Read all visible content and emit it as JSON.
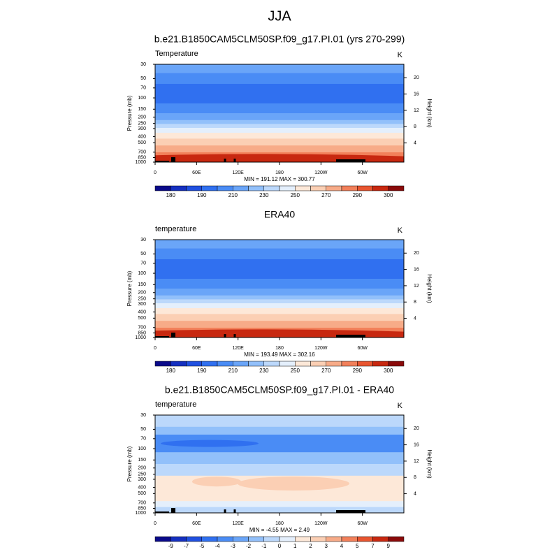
{
  "title": "JJA",
  "chart_data": [
    {
      "type": "contour",
      "title": "b.e21.B1850CAM5CLM50SP.f09_g17.PI.01 (yrs 270-299)",
      "left_label": "Temperature",
      "units": "K",
      "ylabel": "Pressure (mb)",
      "y2label": "Height (km)",
      "log_y": true,
      "ylim": [
        30,
        1000
      ],
      "yticks": [
        30,
        50,
        70,
        100,
        150,
        200,
        250,
        300,
        400,
        500,
        700,
        850,
        1000
      ],
      "y2lim": [
        -0.7,
        23.3
      ],
      "y2ticks": [
        4,
        8,
        12,
        16,
        20
      ],
      "xlim": [
        0,
        360
      ],
      "xticks": [
        0,
        {
          "value": 60,
          "label": "60E"
        },
        {
          "value": 120,
          "label": "120E"
        },
        180,
        {
          "value": 240,
          "label": "120W"
        },
        {
          "value": 300,
          "label": "60W"
        }
      ],
      "stats": "MIN = 191.12  MAX = 300.77",
      "colorbar": {
        "colors": [
          "#0a0a8a",
          "#1530c0",
          "#2050e0",
          "#3070f0",
          "#4a8cf5",
          "#6aa5f8",
          "#92c0fa",
          "#bcd8fb",
          "#e4effc",
          "#fde8d8",
          "#fbcfb4",
          "#f7ab88",
          "#f2805a",
          "#e85530",
          "#c82810",
          "#8a0a0a"
        ],
        "labels": [
          180,
          190,
          210,
          230,
          250,
          270,
          290,
          300
        ]
      }
    },
    {
      "type": "contour",
      "title": "ERA40",
      "left_label": "temperature",
      "units": "K",
      "ylabel": "Pressure (mb)",
      "y2label": "Height (km)",
      "log_y": true,
      "ylim": [
        30,
        1000
      ],
      "yticks": [
        30,
        50,
        70,
        100,
        150,
        200,
        250,
        300,
        400,
        500,
        700,
        850,
        1000
      ],
      "y2lim": [
        -0.7,
        23.3
      ],
      "y2ticks": [
        4,
        8,
        12,
        16,
        20
      ],
      "xlim": [
        0,
        360
      ],
      "xticks": [
        0,
        {
          "value": 60,
          "label": "60E"
        },
        {
          "value": 120,
          "label": "120E"
        },
        180,
        {
          "value": 240,
          "label": "120W"
        },
        {
          "value": 300,
          "label": "60W"
        }
      ],
      "stats": "MIN = 193.49  MAX = 302.16",
      "colorbar": {
        "colors": [
          "#0a0a8a",
          "#1530c0",
          "#2050e0",
          "#3070f0",
          "#4a8cf5",
          "#6aa5f8",
          "#92c0fa",
          "#bcd8fb",
          "#e4effc",
          "#fde8d8",
          "#fbcfb4",
          "#f7ab88",
          "#f2805a",
          "#e85530",
          "#c82810",
          "#8a0a0a"
        ],
        "labels": [
          180,
          190,
          210,
          230,
          250,
          270,
          290,
          300
        ]
      }
    },
    {
      "type": "contour",
      "title": "b.e21.B1850CAM5CLM50SP.f09_g17.PI.01 - ERA40",
      "left_label": "temperature",
      "units": "K",
      "ylabel": "Pressure (mb)",
      "y2label": "Height (km)",
      "log_y": true,
      "ylim": [
        30,
        1000
      ],
      "yticks": [
        30,
        50,
        70,
        100,
        150,
        200,
        250,
        300,
        400,
        500,
        700,
        850,
        1000
      ],
      "y2lim": [
        -0.7,
        23.3
      ],
      "y2ticks": [
        4,
        8,
        12,
        16,
        20
      ],
      "xlim": [
        0,
        360
      ],
      "xticks": [
        0,
        {
          "value": 60,
          "label": "60E"
        },
        {
          "value": 120,
          "label": "120E"
        },
        180,
        {
          "value": 240,
          "label": "120W"
        },
        {
          "value": 300,
          "label": "60W"
        }
      ],
      "stats": "MIN =  -4.55  MAX =   2.49",
      "colorbar": {
        "colors": [
          "#0a0a8a",
          "#1530c0",
          "#2050e0",
          "#3070f0",
          "#4a8cf5",
          "#6aa5f8",
          "#92c0fa",
          "#bcd8fb",
          "#e4effc",
          "#fde8d8",
          "#fbcfb4",
          "#f7ab88",
          "#f2805a",
          "#e85530",
          "#c82810",
          "#8a0a0a"
        ],
        "labels": [
          -9,
          -7,
          -5,
          -4,
          -3,
          -2,
          -1,
          0,
          1,
          2,
          3,
          4,
          5,
          7,
          9
        ]
      }
    }
  ]
}
